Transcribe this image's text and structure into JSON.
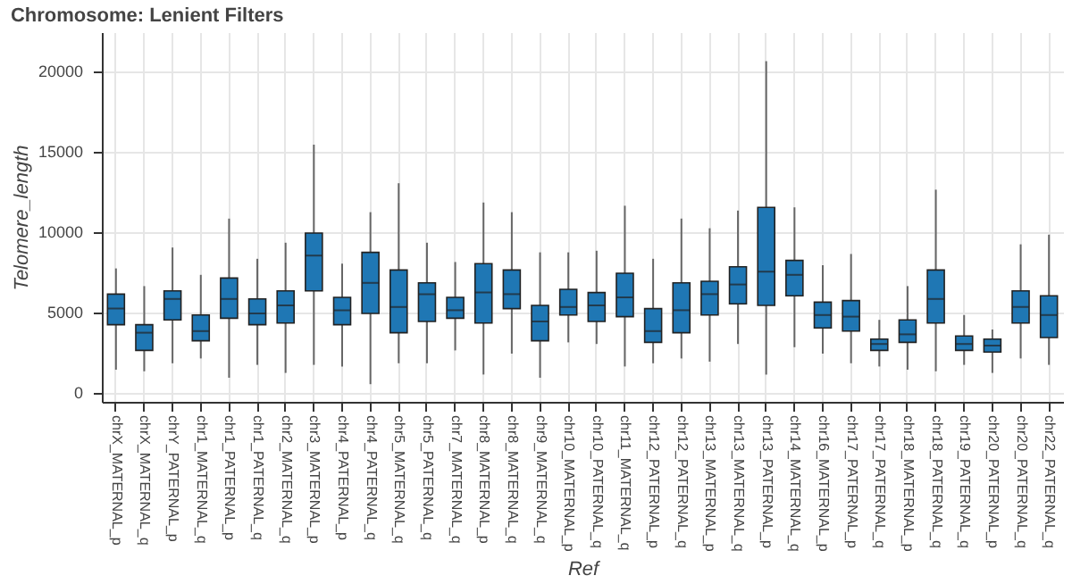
{
  "chart_data": {
    "type": "box",
    "title": "Chromosome: Lenient Filters",
    "xlabel": "Ref",
    "ylabel": "Telomere_length",
    "categories": [
      "chrX_MATERNAL_p",
      "chrX_MATERNAL_q",
      "chrY_PATERNAL_p",
      "chr1_MATERNAL_q",
      "chr1_PATERNAL_p",
      "chr1_PATERNAL_q",
      "chr2_MATERNAL_q",
      "chr3_MATERNAL_p",
      "chr4_PATERNAL_p",
      "chr4_PATERNAL_q",
      "chr5_MATERNAL_q",
      "chr5_PATERNAL_q",
      "chr7_MATERNAL_q",
      "chr8_MATERNAL_p",
      "chr8_MATERNAL_q",
      "chr9_MATERNAL_q",
      "chr10_MATERNAL_p",
      "chr10_PATERNAL_q",
      "chr11_MATERNAL_q",
      "chr12_PATERNAL_p",
      "chr12_PATERNAL_q",
      "chr13_MATERNAL_p",
      "chr13_MATERNAL_q",
      "chr13_PATERNAL_p",
      "chr14_MATERNAL_q",
      "chr16_MATERNAL_p",
      "chr17_PATERNAL_p",
      "chr17_PATERNAL_q",
      "chr18_MATERNAL_p",
      "chr18_PATERNAL_q",
      "chr19_PATERNAL_q",
      "chr20_PATERNAL_p",
      "chr20_PATERNAL_q",
      "chr22_PATERNAL_q"
    ],
    "color": "#1f77b4",
    "boxes": [
      {
        "low": 1400,
        "q1": 4200,
        "median": 5200,
        "q3": 6100,
        "high": 7700
      },
      {
        "low": 1300,
        "q1": 2600,
        "median": 3700,
        "q3": 4200,
        "high": 6600
      },
      {
        "low": 1800,
        "q1": 4500,
        "median": 5800,
        "q3": 6300,
        "high": 9000
      },
      {
        "low": 2100,
        "q1": 3200,
        "median": 3800,
        "q3": 4800,
        "high": 7300
      },
      {
        "low": 900,
        "q1": 4600,
        "median": 5800,
        "q3": 7100,
        "high": 10800
      },
      {
        "low": 1700,
        "q1": 4200,
        "median": 4900,
        "q3": 5800,
        "high": 8300
      },
      {
        "low": 1200,
        "q1": 4300,
        "median": 5400,
        "q3": 6300,
        "high": 9300
      },
      {
        "low": 1700,
        "q1": 6300,
        "median": 8500,
        "q3": 9900,
        "high": 15400
      },
      {
        "low": 1600,
        "q1": 4200,
        "median": 5100,
        "q3": 5900,
        "high": 8000
      },
      {
        "low": 500,
        "q1": 4900,
        "median": 6800,
        "q3": 8700,
        "high": 11200
      },
      {
        "low": 1800,
        "q1": 3700,
        "median": 5300,
        "q3": 7600,
        "high": 13000
      },
      {
        "low": 1800,
        "q1": 4400,
        "median": 6100,
        "q3": 6800,
        "high": 9300
      },
      {
        "low": 2600,
        "q1": 4600,
        "median": 5100,
        "q3": 5900,
        "high": 8100
      },
      {
        "low": 1100,
        "q1": 4300,
        "median": 6200,
        "q3": 8000,
        "high": 11800
      },
      {
        "low": 2400,
        "q1": 5200,
        "median": 6100,
        "q3": 7600,
        "high": 11200
      },
      {
        "low": 900,
        "q1": 3200,
        "median": 4400,
        "q3": 5400,
        "high": 8700
      },
      {
        "low": 3100,
        "q1": 4800,
        "median": 5300,
        "q3": 6400,
        "high": 8700
      },
      {
        "low": 3000,
        "q1": 4400,
        "median": 5400,
        "q3": 6200,
        "high": 8800
      },
      {
        "low": 1600,
        "q1": 4700,
        "median": 5900,
        "q3": 7400,
        "high": 11600
      },
      {
        "low": 1800,
        "q1": 3100,
        "median": 3800,
        "q3": 5200,
        "high": 8300
      },
      {
        "low": 2100,
        "q1": 3700,
        "median": 5100,
        "q3": 6800,
        "high": 10800
      },
      {
        "low": 1900,
        "q1": 4800,
        "median": 6100,
        "q3": 6900,
        "high": 10200
      },
      {
        "low": 3000,
        "q1": 5500,
        "median": 6700,
        "q3": 7800,
        "high": 11300
      },
      {
        "low": 1100,
        "q1": 5400,
        "median": 7500,
        "q3": 11500,
        "high": 20600
      },
      {
        "low": 2800,
        "q1": 6000,
        "median": 7300,
        "q3": 8200,
        "high": 11500
      },
      {
        "low": 2400,
        "q1": 4000,
        "median": 4800,
        "q3": 5600,
        "high": 7900
      },
      {
        "low": 1800,
        "q1": 3800,
        "median": 4700,
        "q3": 5700,
        "high": 8600
      },
      {
        "low": 1600,
        "q1": 2600,
        "median": 3000,
        "q3": 3300,
        "high": 4500
      },
      {
        "low": 1400,
        "q1": 3100,
        "median": 3600,
        "q3": 4500,
        "high": 6600
      },
      {
        "low": 1300,
        "q1": 4300,
        "median": 5800,
        "q3": 7600,
        "high": 12600
      },
      {
        "low": 1700,
        "q1": 2600,
        "median": 3000,
        "q3": 3500,
        "high": 4800
      },
      {
        "low": 1200,
        "q1": 2500,
        "median": 2900,
        "q3": 3300,
        "high": 3900
      },
      {
        "low": 2100,
        "q1": 4300,
        "median": 5300,
        "q3": 6300,
        "high": 9200
      },
      {
        "low": 1700,
        "q1": 3400,
        "median": 4800,
        "q3": 6000,
        "high": 9800
      }
    ],
    "ylim": [
      -600,
      22400
    ],
    "yticks": [
      0,
      5000,
      10000,
      15000,
      20000
    ],
    "grid": true
  }
}
